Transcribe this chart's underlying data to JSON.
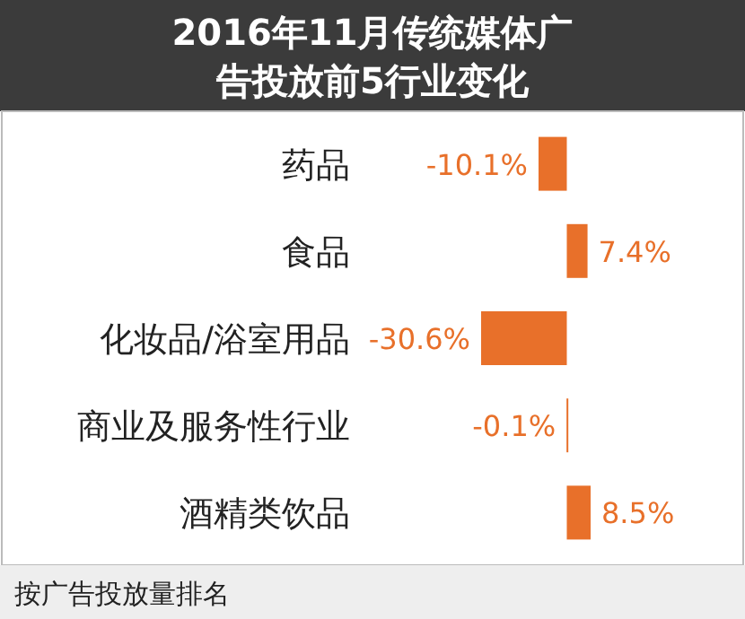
{
  "chart_data": {
    "type": "bar",
    "orientation": "horizontal",
    "title": "2016年11月传统媒体广告投放前5行业变化",
    "categories": [
      "药品",
      "食品",
      "化妆品/浴室用品",
      "商业及服务性行业",
      "酒精类饮品"
    ],
    "values": [
      -10.1,
      7.4,
      -30.6,
      -0.1,
      8.5
    ],
    "color": "#e8702a",
    "value_labels": [
      "-10.1%",
      "7.4%",
      "-30.6%",
      "-0.1%",
      "8.5%"
    ],
    "annotations": [
      "按广告投放量排名"
    ]
  }
}
